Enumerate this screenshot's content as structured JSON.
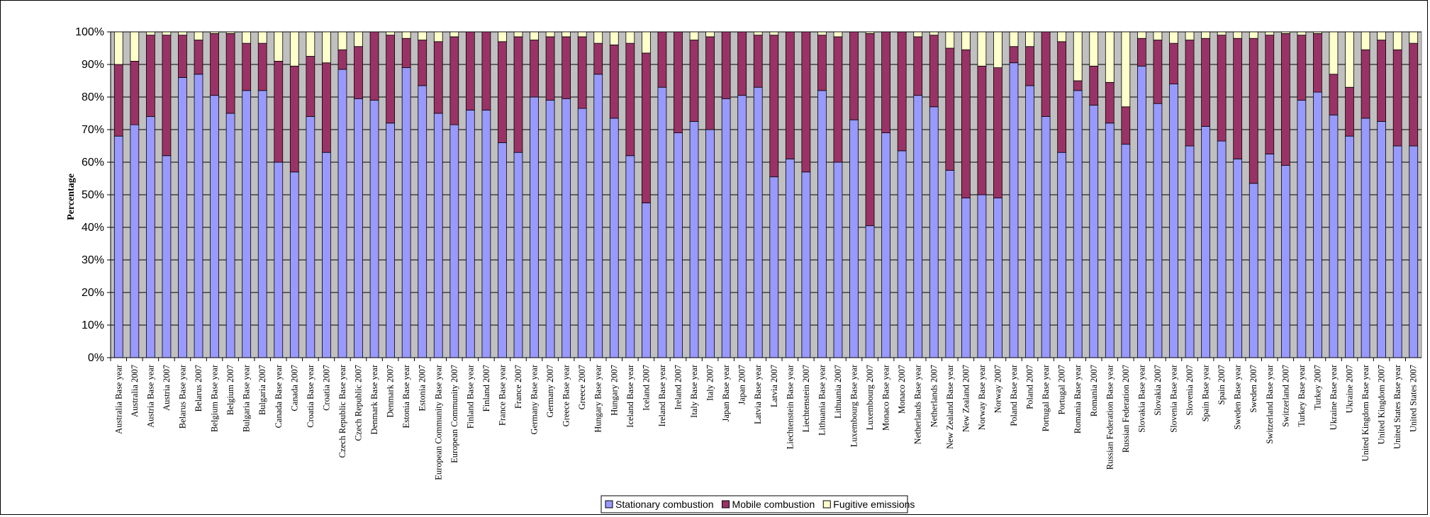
{
  "chart_data": {
    "type": "bar",
    "stacked": true,
    "percent_stacked": true,
    "ylabel": "Percentage",
    "ylim": [
      0,
      100
    ],
    "yticks": [
      "0%",
      "10%",
      "20%",
      "30%",
      "40%",
      "50%",
      "60%",
      "70%",
      "80%",
      "90%",
      "100%"
    ],
    "grid": true,
    "legend_position": "bottom",
    "colors": {
      "plot_background": "#c0c0c0",
      "Stationary combustion": "#9999ff",
      "Mobile combustion": "#993366",
      "Fugitive emissions": "#ffffcc"
    },
    "categories": [
      "Australia  Base year",
      "Australia  2007",
      "Austria  Base year",
      "Austria  2007",
      "Belarus  Base year",
      "Belarus  2007",
      "Belgium  Base year",
      "Belgium  2007",
      "Bulgaria  Base year",
      "Bulgaria  2007",
      "Canada  Base year",
      "Canada  2007",
      "Croatia  Base year",
      "Croatia  2007",
      "Czech Republic  Base year",
      "Czech Republic  2007",
      "Denmark  Base year",
      "Denmark  2007",
      "Estonia  Base year",
      "Estonia  2007",
      "European Community  Base year",
      "European Community  2007",
      "Finland  Base year",
      "Finland  2007",
      "France  Base year",
      "France  2007",
      "Germany  Base year",
      "Germany  2007",
      "Greece  Base year",
      "Greece  2007",
      "Hungary  Base year",
      "Hungary  2007",
      "Iceland  Base year",
      "Iceland  2007",
      "Ireland  Base year",
      "Ireland  2007",
      "Italy  Base year",
      "Italy  2007",
      "Japan  Base year",
      "Japan  2007",
      "Latvia  Base year",
      "Latvia  2007",
      "Liechtenstein  Base year",
      "Liechtenstein  2007",
      "Lithuania  Base year",
      "Lithuania  2007",
      "Luxembourg  Base year",
      "Luxembourg  2007",
      "Monaco  Base year",
      "Monaco  2007",
      "Netherlands  Base year",
      "Netherlands  2007",
      "New Zealand  Base year",
      "New Zealand  2007",
      "Norway  Base year",
      "Norway  2007",
      "Poland  Base year",
      "Poland  2007",
      "Portugal  Base year",
      "Portugal  2007",
      "Romania  Base year",
      "Romania  2007",
      "Russian Federation  Base year",
      "Russian Federation  2007",
      "Slovakia  Base year",
      "Slovakia  2007",
      "Slovenia  Base year",
      "Slovenia  2007",
      "Spain  Base year",
      "Spain  2007",
      "Sweden  Base year",
      "Sweden  2007",
      "Switzerland  Base year",
      "Switzerland  2007",
      "Turkey  Base year",
      "Turkey  2007",
      "Ukraine  Base year",
      "Ukraine  2007",
      "United Kingdom  Base year",
      "United Kingdom  2007",
      "United States  Base year",
      "United States  2007"
    ],
    "series": [
      {
        "name": "Stationary combustion",
        "values": [
          68,
          71.5,
          74,
          62,
          86,
          87,
          80.5,
          75,
          82,
          82,
          60,
          57,
          74,
          63,
          88.5,
          79.5,
          79,
          72,
          89,
          83.5,
          75,
          71.5,
          76,
          76,
          66,
          63,
          80,
          79,
          79.5,
          76.5,
          87,
          73.5,
          62,
          47.5,
          83,
          69,
          72.5,
          70,
          79.5,
          80.5,
          83,
          55.5,
          61,
          57,
          82,
          60,
          73,
          40.5,
          69,
          63.5,
          80.5,
          77,
          57.5,
          49,
          50,
          49,
          90.5,
          83.5,
          74,
          63,
          82,
          77.5,
          72,
          65.5,
          89.5,
          78,
          84,
          65,
          71,
          66.5,
          61,
          53.5,
          62.5,
          59,
          79,
          81.5,
          74.5,
          68,
          73.5,
          72.5,
          65,
          65
        ]
      },
      {
        "name": "Mobile combustion",
        "values": [
          22,
          19.5,
          25,
          37,
          13,
          10.5,
          19,
          24.5,
          14.5,
          14.5,
          31,
          32.5,
          18.5,
          27.5,
          6,
          16,
          21,
          27,
          9,
          14,
          22,
          27,
          24,
          24,
          31,
          35.5,
          17.5,
          19.5,
          19,
          22,
          9.5,
          22.5,
          34.5,
          46,
          17,
          31,
          25,
          28.5,
          20.5,
          19.5,
          16,
          43.5,
          39,
          43,
          17,
          38.5,
          27,
          59,
          31,
          36.5,
          18,
          22,
          37.5,
          45.5,
          39.5,
          40,
          5,
          12,
          26,
          34,
          3,
          12,
          12.5,
          11.5,
          8.5,
          19.5,
          12.5,
          32.5,
          27,
          32.5,
          37,
          44.5,
          36.5,
          40.5,
          20,
          18,
          12.5,
          15,
          21,
          25,
          29.5,
          31.5
        ]
      },
      {
        "name": "Fugitive emissions",
        "values": [
          10,
          9,
          1,
          1,
          1,
          2.5,
          0.5,
          0.5,
          3.5,
          3.5,
          9,
          10.5,
          7.5,
          9.5,
          5.5,
          4.5,
          0,
          1,
          2,
          2.5,
          3,
          1.5,
          0,
          0,
          3,
          1.5,
          2.5,
          1.5,
          1.5,
          1.5,
          3.5,
          4,
          3.5,
          6.5,
          0,
          0,
          2.5,
          1.5,
          0,
          0,
          1,
          1,
          0,
          0,
          1,
          1.5,
          0,
          0.5,
          0,
          0,
          1.5,
          1,
          5,
          5.5,
          10.5,
          11,
          4.5,
          4.5,
          0,
          3,
          15,
          10.5,
          15.5,
          23,
          2,
          2.5,
          3.5,
          2.5,
          2,
          1,
          2,
          2,
          1,
          0.5,
          1,
          0.5,
          13,
          17,
          5.5,
          2.5,
          5.5,
          3.5
        ]
      }
    ]
  }
}
